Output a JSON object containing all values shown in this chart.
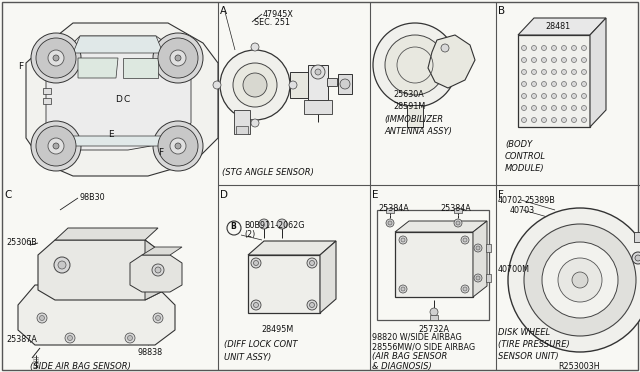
{
  "bg_color": "#f8f8f4",
  "border_color": "#555555",
  "text_color": "#111111",
  "line_color": "#222222",
  "fig_width": 6.4,
  "fig_height": 3.72,
  "dpi": 100,
  "sections": {
    "A_label": "A",
    "A_part": "47945X",
    "A_sub": "SEC. 251",
    "A_caption": "(STG ANGLE SENSOR)",
    "B_label": "B",
    "B_part": "28481",
    "B_caption1": "(BODY",
    "B_caption2": "CONTROL",
    "B_caption3": "MODULE)",
    "C_label": "C",
    "C_part1": "98B30",
    "C_part2": "25306B",
    "C_part3": "25387A",
    "C_part4": "98838",
    "C_caption": "(SIDE AIR BAG SENSOR)",
    "D_label": "D",
    "D_bolt": "B0B911-2062G",
    "D_bolt2": "(2)",
    "D_part": "28495M",
    "D_caption1": "(DIFF LOCK CONT",
    "D_caption2": "UNIT ASSY)",
    "E_label": "E",
    "E_part1": "25384A",
    "E_part2": "25384A",
    "E_part3": "25732A",
    "E_caption1": "98820 W/SIDE AIRBAG",
    "E_caption2": "28556MW/O SIDE AIRBAG",
    "E_caption3": "(AIR BAG SENSOR",
    "E_caption4": "& DIAGNOSIS)",
    "F_label": "F",
    "F_part1": "40702",
    "F_part2": "25389B",
    "F_part3": "40703",
    "F_part4": "40700M",
    "F_caption1": "DISK WHEEL",
    "F_caption2": "(TIRE PRESSURE)",
    "F_caption3": "SENSOR UNIT)",
    "ref_label": "R253003H",
    "immob_part1": "25630A",
    "immob_part2": "28591M",
    "immob_cap1": "(IMMOBILIZER",
    "immob_cap2": "ANTENNA ASSY)"
  }
}
